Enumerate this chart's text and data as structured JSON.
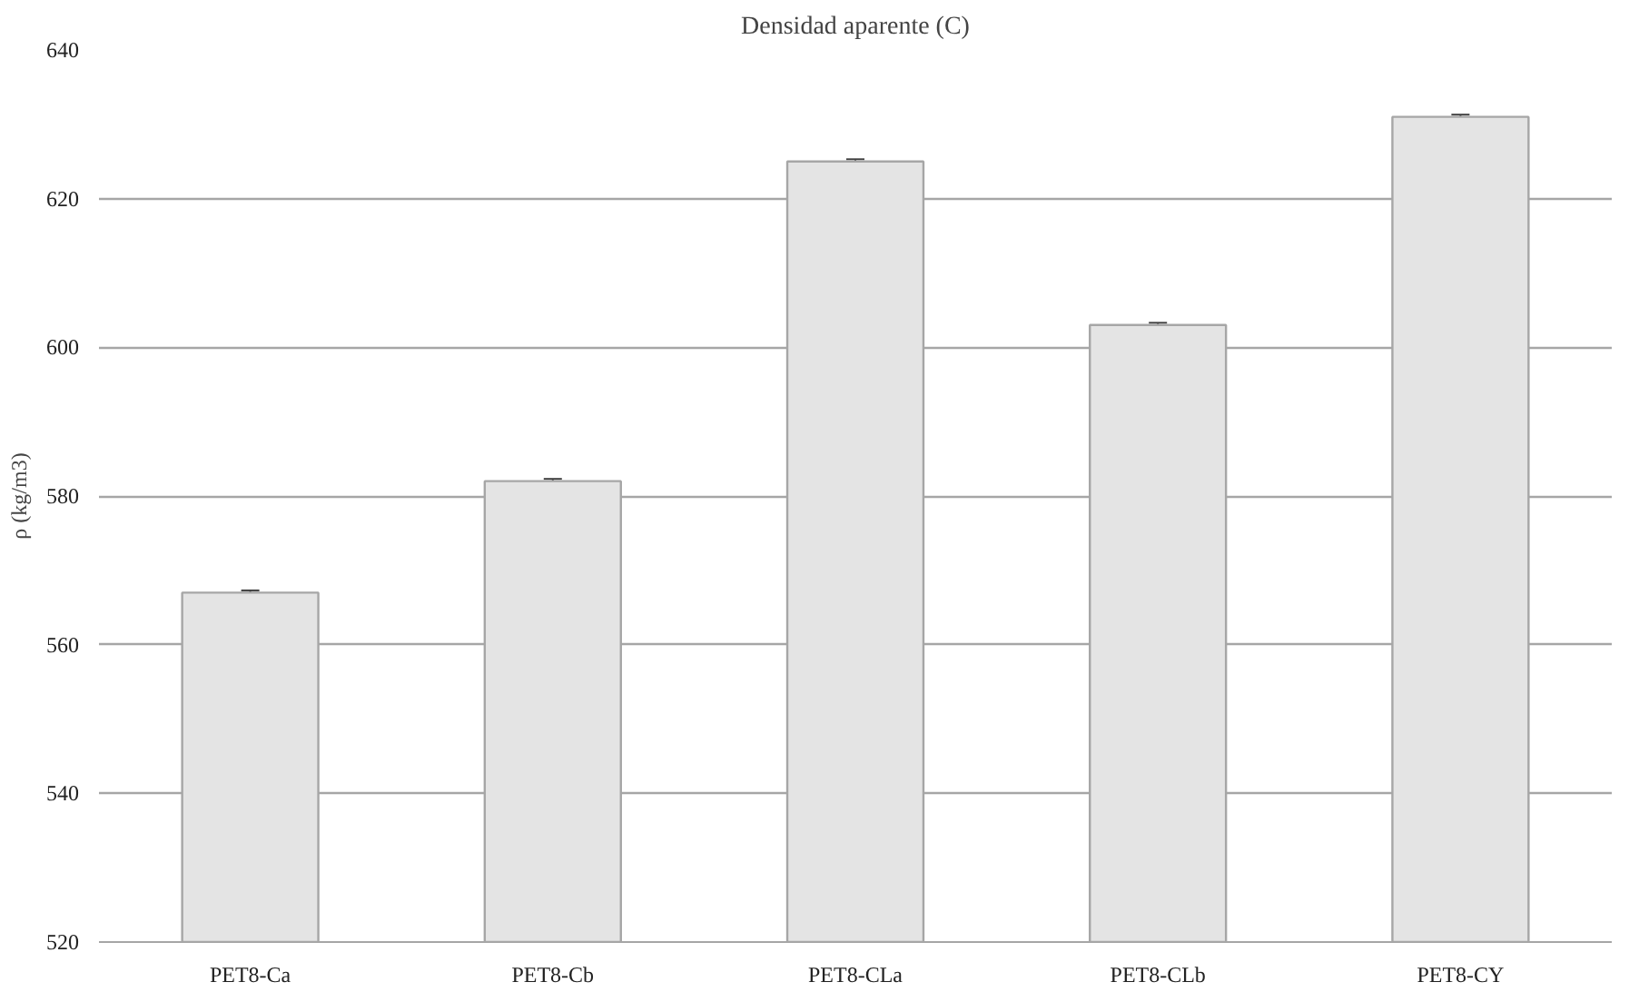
{
  "chart_data": {
    "type": "bar",
    "title": "Densidad aparente (C)",
    "ylabel": "ρ (kg/m3)",
    "categories": [
      "PET8-Ca",
      "PET8-Cb",
      "PET8-CLa",
      "PET8-CLb",
      "PET8-CY"
    ],
    "values": [
      567,
      582,
      625,
      603,
      631
    ],
    "errors": [
      0.3,
      0.3,
      0.3,
      0.3,
      0.3
    ],
    "color": "#e4e4e4",
    "ylim": [
      520,
      640
    ],
    "yticks": [
      520,
      540,
      560,
      580,
      600,
      620,
      640
    ],
    "grid": "y"
  }
}
